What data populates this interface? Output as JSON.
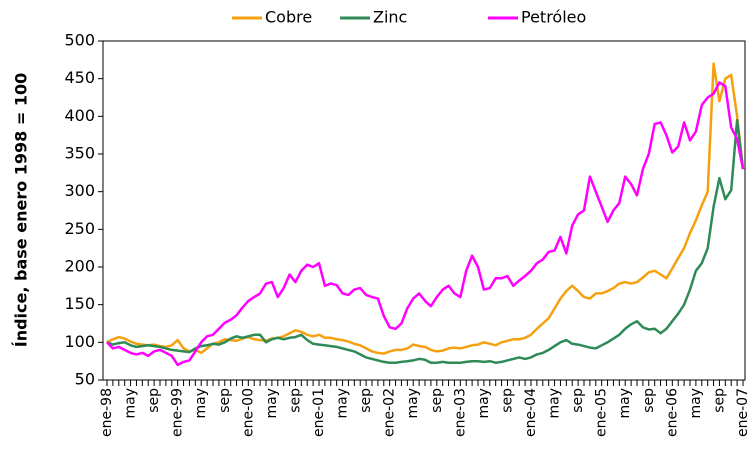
{
  "chart_data": {
    "type": "line",
    "y_label": "Índice, base enero 1998 = 100",
    "legend": "top",
    "ylim": [
      50,
      500
    ],
    "yticks": [
      50,
      100,
      150,
      200,
      250,
      300,
      350,
      400,
      450,
      500
    ],
    "categories": [
      "ene-98",
      null,
      null,
      null,
      "may",
      null,
      null,
      null,
      "sep",
      null,
      null,
      null,
      "ene-99",
      null,
      null,
      null,
      "may",
      null,
      null,
      null,
      "sep",
      null,
      null,
      null,
      "ene-00",
      null,
      null,
      null,
      "may",
      null,
      null,
      null,
      "sep",
      null,
      null,
      null,
      "ene-01",
      null,
      null,
      null,
      "may",
      null,
      null,
      null,
      "sep",
      null,
      null,
      null,
      "ene-02",
      null,
      null,
      null,
      "may",
      null,
      null,
      null,
      "sep",
      null,
      null,
      null,
      "ene-03",
      null,
      null,
      null,
      "may",
      null,
      null,
      null,
      "sep",
      null,
      null,
      null,
      "ene-04",
      null,
      null,
      null,
      "may",
      null,
      null,
      null,
      "sep",
      null,
      null,
      null,
      "ene-05",
      null,
      null,
      null,
      "may",
      null,
      null,
      null,
      "sep",
      null,
      null,
      null,
      "ene-06",
      null,
      null,
      null,
      "may",
      null,
      null,
      null,
      "sep",
      null,
      null,
      null,
      "ene-07"
    ],
    "series": [
      {
        "name": "Cobre",
        "color": "#f5a00f",
        "values": [
          100,
          104,
          107,
          105,
          101,
          98,
          97,
          96,
          97,
          95,
          94,
          96,
          103,
          92,
          88,
          90,
          86,
          92,
          98,
          100,
          104,
          103,
          102,
          105,
          107,
          104,
          103,
          102,
          105,
          106,
          108,
          112,
          116,
          114,
          110,
          108,
          110,
          106,
          106,
          104,
          103,
          101,
          98,
          96,
          92,
          88,
          86,
          85,
          88,
          90,
          90,
          92,
          97,
          95,
          94,
          90,
          88,
          89,
          92,
          93,
          92,
          94,
          96,
          97,
          100,
          98,
          96,
          100,
          102,
          104,
          104,
          106,
          110,
          118,
          125,
          132,
          145,
          158,
          168,
          175,
          168,
          160,
          158,
          165,
          165,
          168,
          172,
          178,
          180,
          178,
          180,
          186,
          193,
          195,
          190,
          185,
          198,
          212,
          225,
          245,
          262,
          282,
          300,
          470,
          420,
          450,
          455,
          400,
          330
        ]
      },
      {
        "name": "Zinc",
        "color": "#2e8b57",
        "values": [
          100,
          97,
          99,
          100,
          96,
          94,
          95,
          96,
          95,
          94,
          92,
          90,
          89,
          88,
          87,
          92,
          95,
          96,
          98,
          97,
          100,
          105,
          108,
          106,
          108,
          110,
          110,
          100,
          104,
          106,
          104,
          106,
          107,
          110,
          103,
          98,
          97,
          96,
          95,
          94,
          92,
          90,
          88,
          84,
          80,
          78,
          76,
          74,
          73,
          73,
          74,
          75,
          76,
          78,
          77,
          73,
          73,
          74,
          73,
          73,
          73,
          74,
          75,
          75,
          74,
          75,
          73,
          74,
          76,
          78,
          80,
          78,
          80,
          84,
          86,
          90,
          95,
          100,
          103,
          98,
          97,
          95,
          93,
          92,
          96,
          100,
          105,
          110,
          118,
          124,
          128,
          120,
          117,
          118,
          112,
          118,
          128,
          138,
          150,
          170,
          195,
          205,
          225,
          280,
          318,
          290,
          302,
          395,
          330
        ]
      },
      {
        "name": "Petróleo",
        "color": "#ff00ff",
        "values": [
          100,
          92,
          94,
          90,
          86,
          84,
          86,
          82,
          88,
          90,
          86,
          82,
          70,
          74,
          76,
          88,
          100,
          108,
          110,
          118,
          126,
          130,
          136,
          146,
          155,
          160,
          165,
          178,
          180,
          160,
          172,
          190,
          180,
          195,
          203,
          200,
          205,
          175,
          178,
          176,
          165,
          163,
          170,
          172,
          163,
          160,
          158,
          135,
          120,
          118,
          125,
          145,
          158,
          165,
          155,
          148,
          160,
          170,
          175,
          165,
          160,
          195,
          215,
          200,
          170,
          172,
          185,
          185,
          188,
          175,
          182,
          188,
          195,
          205,
          210,
          220,
          222,
          240,
          218,
          255,
          270,
          275,
          320,
          300,
          280,
          260,
          275,
          285,
          320,
          310,
          295,
          330,
          350,
          390,
          392,
          375,
          352,
          360,
          392,
          368,
          380,
          415,
          425,
          430,
          445,
          440,
          385,
          370,
          330
        ]
      }
    ]
  }
}
